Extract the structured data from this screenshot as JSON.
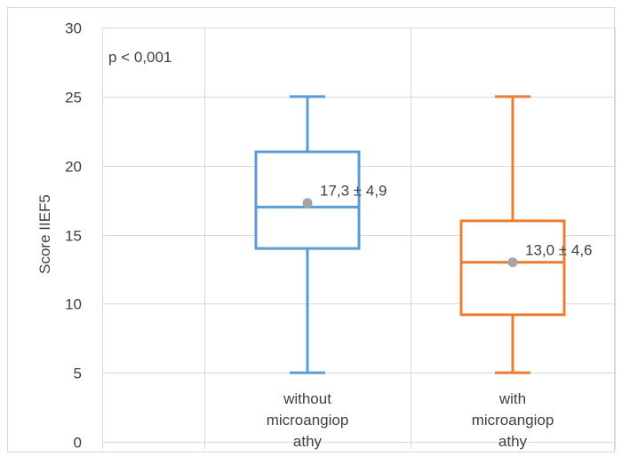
{
  "chart_data": {
    "type": "box",
    "ylabel": "Score IIEF5",
    "ylim": [
      0,
      30
    ],
    "yticks": [
      0,
      5,
      10,
      15,
      20,
      25,
      30
    ],
    "grid": true,
    "annotation": "p < 0,001",
    "categories": [
      {
        "lines": [
          "without",
          "microangiop",
          "athy"
        ]
      },
      {
        "lines": [
          "with",
          "microangiop",
          "athy"
        ]
      }
    ],
    "boxes": [
      {
        "min": 5,
        "q1": 14,
        "median": 17,
        "q3": 21,
        "max": 25,
        "mean": 17.3,
        "label": "17,3 ± 4,9",
        "color": "#5b9bd5"
      },
      {
        "min": 5,
        "q1": 9.2,
        "median": 13,
        "q3": 16,
        "max": 25,
        "mean": 13.0,
        "label": "13,0 ± 4,6",
        "color": "#ed7d31"
      }
    ],
    "colors": {
      "grid": "#d9d9d9",
      "mean_marker": "#a5a5a5",
      "text": "#404040"
    }
  }
}
